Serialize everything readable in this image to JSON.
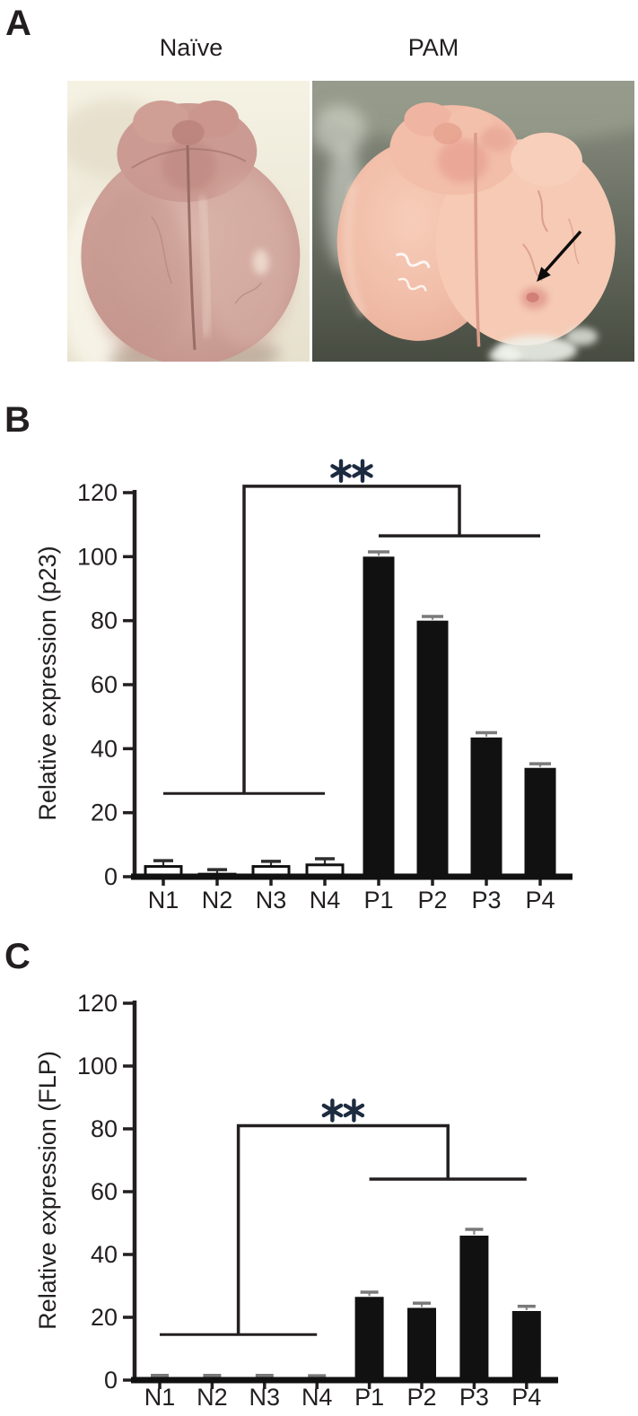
{
  "panel_a": {
    "label": "A",
    "photos": [
      {
        "title": "Naïve",
        "alt": "Dorsal view of naive mouse brain on white tissue paper"
      },
      {
        "title": "PAM",
        "alt": "Dorsal view of PAM mouse brain on gray surface, arrow indicates focal lesion"
      }
    ]
  },
  "panel_b": {
    "label": "B"
  },
  "panel_c": {
    "label": "C"
  },
  "colors": {
    "ink": "#231f20",
    "bar_black": "#111111",
    "asterisk": "#1d2b40",
    "error_dark": "#2e2e2e",
    "error_gray": "#7a7a7a"
  },
  "chart_data": [
    {
      "id": "p23",
      "type": "bar",
      "title": "",
      "xlabel": "",
      "ylabel": "Relative expression (p23)",
      "ylim": [
        0,
        120
      ],
      "yticks": [
        0,
        20,
        40,
        60,
        80,
        100,
        120
      ],
      "grid": false,
      "categories": [
        "N1",
        "N2",
        "N3",
        "N4",
        "P1",
        "P2",
        "P3",
        "P4"
      ],
      "values": [
        3.2,
        0.8,
        3.2,
        3.7,
        100,
        80,
        43.5,
        34
      ],
      "errors_up": [
        1.8,
        1.4,
        1.6,
        1.9,
        1.5,
        1.3,
        1.5,
        1.3
      ],
      "bar_fills": [
        "white",
        "white",
        "white",
        "white",
        "black",
        "black",
        "black",
        "black"
      ],
      "significance": {
        "label": "**",
        "left_group": [
          "N1",
          "N4"
        ],
        "right_group": [
          "P1",
          "P4"
        ],
        "left_stem_between": [
          "N2",
          "N3"
        ],
        "right_stem_between": [
          "P2",
          "P3"
        ],
        "left_level": 26,
        "apex_level": 122,
        "right_level": 106.5
      }
    },
    {
      "id": "FLP",
      "type": "bar",
      "title": "",
      "xlabel": "",
      "ylabel": "Relative expression (FLP)",
      "ylim": [
        0,
        120
      ],
      "yticks": [
        0,
        20,
        40,
        60,
        80,
        100,
        120
      ],
      "grid": false,
      "categories": [
        "N1",
        "N2",
        "N3",
        "N4",
        "P1",
        "P2",
        "P3",
        "P4"
      ],
      "values": [
        1,
        1,
        1,
        0.9,
        26.5,
        23,
        46,
        22
      ],
      "errors_up": [
        0.5,
        0.5,
        0.5,
        0.5,
        1.5,
        1.5,
        2,
        1.5
      ],
      "bar_fills": [
        "black",
        "black",
        "black",
        "black",
        "black",
        "black",
        "black",
        "black"
      ],
      "significance": {
        "label": "**",
        "left_group": [
          "N1",
          "N4"
        ],
        "right_group": [
          "P1",
          "P4"
        ],
        "left_stem_between": [
          "N2",
          "N3"
        ],
        "right_stem_between": [
          "P2",
          "P3"
        ],
        "left_level": 14.5,
        "apex_level": 81,
        "right_level": 64
      }
    }
  ]
}
